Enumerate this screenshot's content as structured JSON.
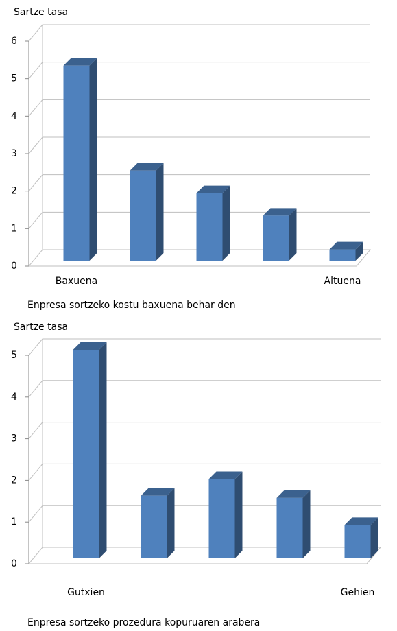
{
  "chart_data": [
    {
      "type": "bar3d",
      "ylabel": "Sartze tasa",
      "xlabel": "Enpresa sortzeko kostu baxuena behar den",
      "categories": [
        "Baxuena",
        null,
        null,
        null,
        "Altuena"
      ],
      "values": [
        5.2,
        2.4,
        1.8,
        1.2,
        0.3
      ],
      "color": "#4f81bd",
      "ylim": [
        0,
        6
      ],
      "yticks": [
        0,
        1,
        2,
        3,
        4,
        5,
        6
      ],
      "grid": true
    },
    {
      "type": "bar3d",
      "ylabel": "Sartze tasa",
      "xlabel": "Enpresa sortzeko prozedura kopuruaren arabera",
      "categories": [
        "Gutxien",
        null,
        null,
        null,
        "Gehien"
      ],
      "values": [
        5.0,
        1.5,
        1.9,
        1.45,
        0.8
      ],
      "color": "#4f81bd",
      "ylim": [
        0,
        5
      ],
      "yticks": [
        0,
        1,
        2,
        3,
        4,
        5
      ],
      "grid": true
    }
  ]
}
